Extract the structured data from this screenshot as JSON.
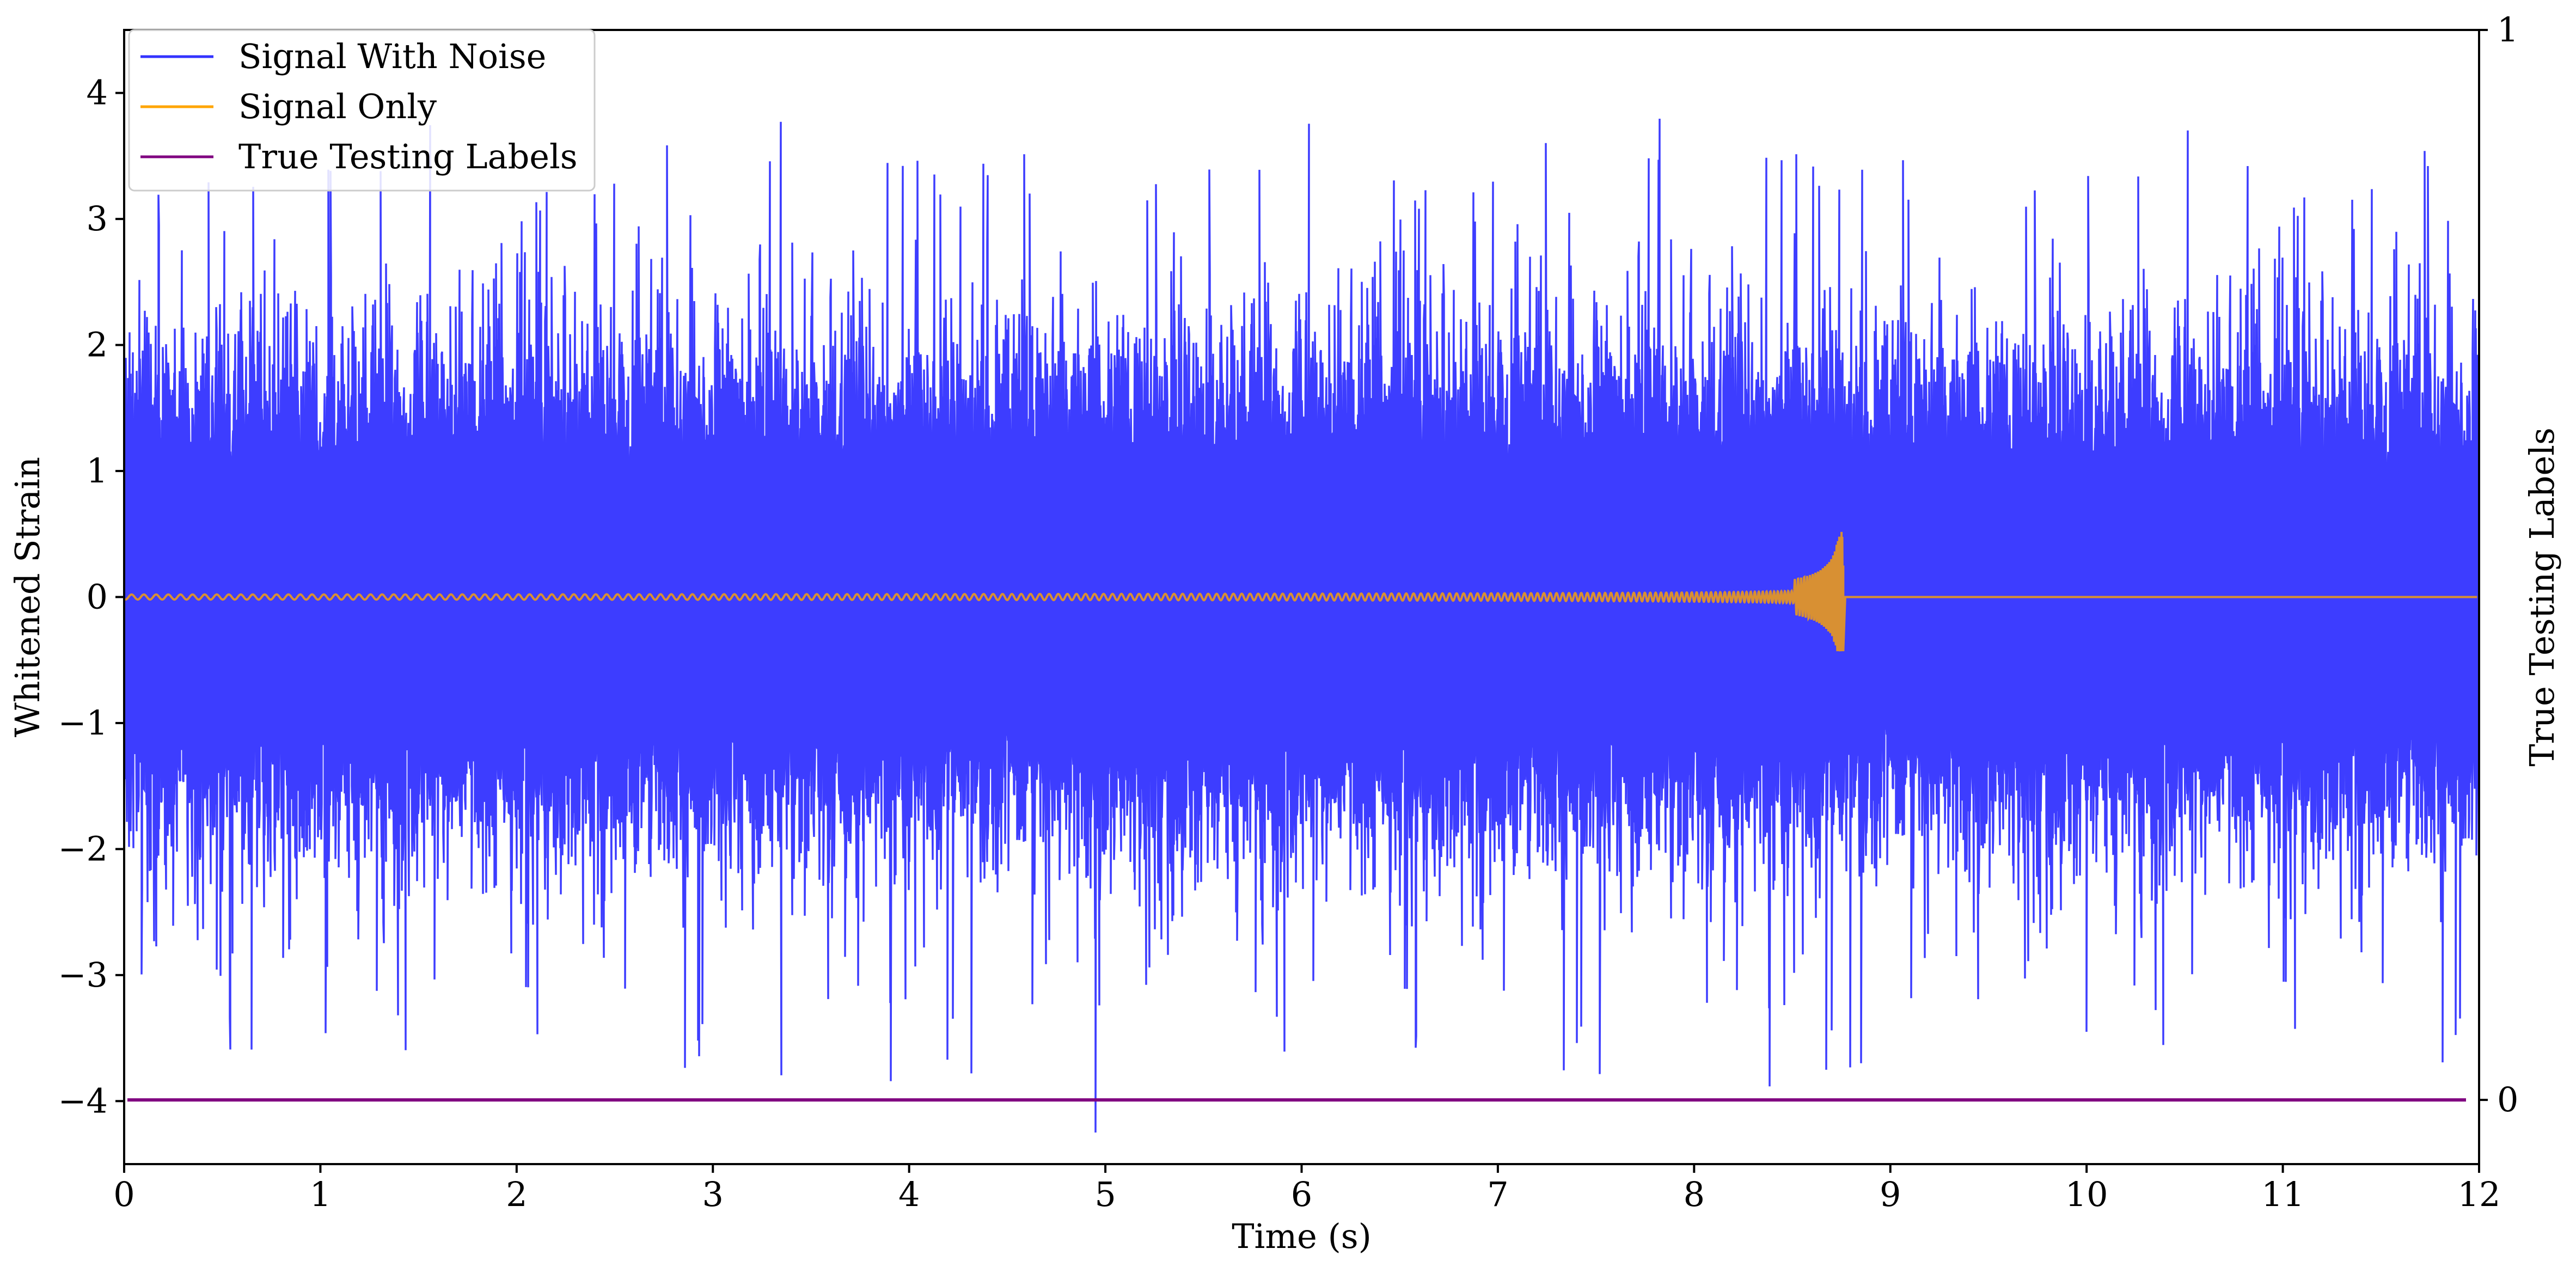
{
  "chart_data": {
    "type": "line",
    "xlabel": "Time (s)",
    "ylabel": "Whitened Strain",
    "ylabel_right": "True Testing Labels",
    "xlim": [
      0,
      12
    ],
    "ylim": [
      -4.5,
      4.5
    ],
    "ylim_right": [
      -0.06,
      1.0
    ],
    "x_ticks": [
      0,
      1,
      2,
      3,
      4,
      5,
      6,
      7,
      8,
      9,
      10,
      11,
      12
    ],
    "y_ticks": [
      -4,
      -3,
      -2,
      -1,
      0,
      1,
      2,
      3,
      4
    ],
    "y_ticks_right": [
      0,
      1
    ],
    "grid": false,
    "legend_position": "upper-left",
    "series": [
      {
        "name": "Signal With Noise",
        "color": "#3333ff",
        "axis": "left",
        "description_values": "dense noise band roughly within -1.6 to 1.6, spikes up to about 3.4 and down to about -4.2 (near t=4.95 s)",
        "peaks": [
          {
            "x": 0.43,
            "y": 3.25
          },
          {
            "x": 1.04,
            "y": 3.35
          },
          {
            "x": 4.4,
            "y": 3.3
          },
          {
            "x": 6.47,
            "y": 3.25
          },
          {
            "x": 7.82,
            "y": 3.4
          },
          {
            "x": 10.82,
            "y": 3.42
          },
          {
            "x": 11.74,
            "y": 3.42
          }
        ],
        "troughs": [
          {
            "x": 0.54,
            "y": -3.55
          },
          {
            "x": 0.65,
            "y": -3.55
          },
          {
            "x": 2.93,
            "y": -3.6
          },
          {
            "x": 3.35,
            "y": -3.75
          },
          {
            "x": 4.95,
            "y": -4.2
          },
          {
            "x": 6.58,
            "y": -3.52
          },
          {
            "x": 7.52,
            "y": -3.72
          },
          {
            "x": 8.85,
            "y": -3.7
          },
          {
            "x": 10.0,
            "y": -3.45
          }
        ]
      },
      {
        "name": "Signal Only",
        "color": "#ffa500",
        "axis": "left",
        "chirp_start": 0.0,
        "merger_time": 8.76,
        "peak_amplitude": 0.52,
        "min_amplitude": -0.43
      },
      {
        "name": "True Testing Labels",
        "color": "#800080",
        "axis": "right",
        "x": [
          0,
          12
        ],
        "y": [
          0,
          0
        ]
      }
    ]
  }
}
